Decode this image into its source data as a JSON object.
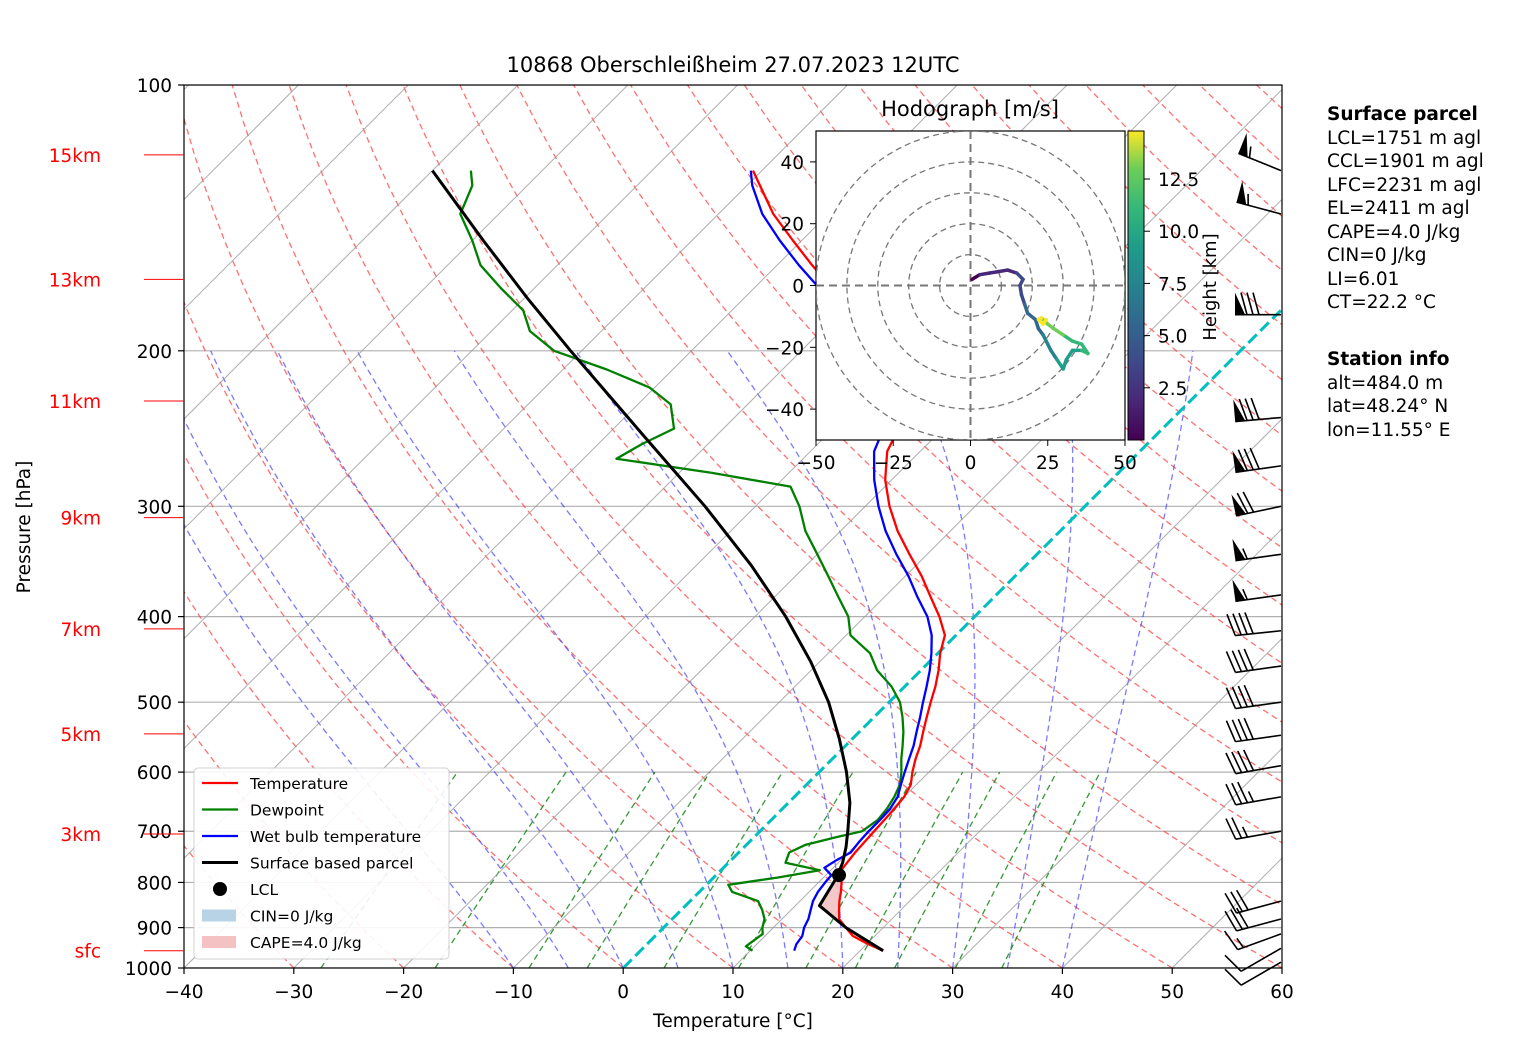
{
  "chart_data": {
    "type": "skew-t",
    "title": "10868 Oberschleißheim 27.07.2023 12UTC",
    "xlabel": "Temperature [°C]",
    "ylabel": "Pressure [hPa]",
    "xlim": [
      -40,
      60
    ],
    "ylim": [
      1000,
      100
    ],
    "x_ticks": [
      "−40",
      "−30",
      "−20",
      "−10",
      "0",
      "10",
      "20",
      "30",
      "40",
      "50",
      "60"
    ],
    "y_ticks": [
      "100",
      "200",
      "300",
      "400",
      "500",
      "600",
      "700",
      "800",
      "900",
      "1000"
    ],
    "y_tick_values": [
      100,
      200,
      300,
      400,
      500,
      600,
      700,
      800,
      900,
      1000
    ],
    "height_labels": [
      {
        "label": "sfc",
        "p": 956
      },
      {
        "label": "3km",
        "p": 705
      },
      {
        "label": "5km",
        "p": 543
      },
      {
        "label": "7km",
        "p": 413
      },
      {
        "label": "9km",
        "p": 309
      },
      {
        "label": "11km",
        "p": 228
      },
      {
        "label": "13km",
        "p": 166
      },
      {
        "label": "15km",
        "p": 120
      }
    ],
    "legend": {
      "position": "lower-left",
      "entries": [
        "Temperature",
        "Dewpoint",
        "Wet bulb temperature",
        "Surface based parcel",
        "LCL",
        "CIN=0 J/kg",
        "CAPE=4.0 J/kg"
      ]
    },
    "colors": {
      "temperature": "#ff0000",
      "dewpoint": "#008000",
      "wetbulb": "#0000ff",
      "parcel": "#000000",
      "isotherm_zero": "#00bfbf",
      "cin": "#b9d3e6",
      "cape": "#f4c2c2"
    },
    "series": [
      {
        "name": "Temperature",
        "points": [
          [
            956,
            22.1
          ],
          [
            940,
            20.2
          ],
          [
            920,
            18.0
          ],
          [
            900,
            16.6
          ],
          [
            880,
            15.2
          ],
          [
            860,
            14.4
          ],
          [
            840,
            13.6
          ],
          [
            820,
            12.9
          ],
          [
            800,
            12.1
          ],
          [
            790,
            11.4
          ],
          [
            780,
            11.0
          ],
          [
            760,
            10.8
          ],
          [
            740,
            10.6
          ],
          [
            720,
            10.5
          ],
          [
            700,
            10.4
          ],
          [
            680,
            10.3
          ],
          [
            660,
            10.2
          ],
          [
            640,
            10.0
          ],
          [
            620,
            9.5
          ],
          [
            600,
            8.5
          ],
          [
            580,
            7.6
          ],
          [
            560,
            6.8
          ],
          [
            540,
            5.8
          ],
          [
            520,
            4.8
          ],
          [
            500,
            3.8
          ],
          [
            480,
            2.8
          ],
          [
            460,
            1.6
          ],
          [
            440,
            0.2
          ],
          [
            420,
            -1.0
          ],
          [
            400,
            -3.2
          ],
          [
            380,
            -5.8
          ],
          [
            360,
            -8.5
          ],
          [
            340,
            -11.6
          ],
          [
            320,
            -14.8
          ],
          [
            300,
            -17.8
          ],
          [
            280,
            -20.6
          ],
          [
            260,
            -23.0
          ],
          [
            250,
            -23.7
          ],
          [
            240,
            -25.0
          ],
          [
            230,
            -27.5
          ],
          [
            220,
            -30.2
          ],
          [
            212,
            -31.2
          ],
          [
            205,
            -31.5
          ],
          [
            200,
            -32.6
          ],
          [
            190,
            -35.6
          ],
          [
            180,
            -39.0
          ],
          [
            170,
            -42.8
          ],
          [
            160,
            -46.8
          ],
          [
            150,
            -50.8
          ],
          [
            140,
            -55.0
          ],
          [
            130,
            -58.8
          ],
          [
            125,
            -60.8
          ]
        ]
      },
      {
        "name": "Dewpoint",
        "points": [
          [
            956,
            10.2
          ],
          [
            945,
            9.2
          ],
          [
            930,
            9.4
          ],
          [
            915,
            9.6
          ],
          [
            900,
            9.0
          ],
          [
            880,
            8.4
          ],
          [
            860,
            7.4
          ],
          [
            840,
            6.2
          ],
          [
            820,
            3.0
          ],
          [
            805,
            2.0
          ],
          [
            790,
            5.8
          ],
          [
            775,
            9.0
          ],
          [
            760,
            5.2
          ],
          [
            740,
            4.6
          ],
          [
            725,
            5.4
          ],
          [
            710,
            7.6
          ],
          [
            700,
            9.3
          ],
          [
            680,
            9.7
          ],
          [
            660,
            9.5
          ],
          [
            640,
            9.1
          ],
          [
            620,
            8.5
          ],
          [
            600,
            7.5
          ],
          [
            580,
            6.3
          ],
          [
            560,
            5.2
          ],
          [
            540,
            4.0
          ],
          [
            520,
            2.6
          ],
          [
            500,
            1.0
          ],
          [
            480,
            -1.2
          ],
          [
            460,
            -4.0
          ],
          [
            440,
            -6.2
          ],
          [
            420,
            -9.6
          ],
          [
            400,
            -11.5
          ],
          [
            380,
            -14.2
          ],
          [
            360,
            -17.0
          ],
          [
            340,
            -20.0
          ],
          [
            320,
            -23.2
          ],
          [
            300,
            -26.0
          ],
          [
            285,
            -28.6
          ],
          [
            275,
            -37.0
          ],
          [
            265,
            -47.0
          ],
          [
            255,
            -46.0
          ],
          [
            245,
            -44.5
          ],
          [
            230,
            -47.0
          ],
          [
            220,
            -50.5
          ],
          [
            210,
            -56.0
          ],
          [
            200,
            -62.5
          ],
          [
            190,
            -66.5
          ],
          [
            180,
            -69.0
          ],
          [
            170,
            -73.0
          ],
          [
            160,
            -77.0
          ],
          [
            150,
            -80.0
          ],
          [
            140,
            -83.5
          ],
          [
            130,
            -85.0
          ],
          [
            125,
            -86.5
          ]
        ]
      },
      {
        "name": "Wet bulb temperature",
        "points": [
          [
            956,
            14.0
          ],
          [
            940,
            13.6
          ],
          [
            920,
            13.4
          ],
          [
            900,
            12.8
          ],
          [
            880,
            12.4
          ],
          [
            860,
            11.8
          ],
          [
            840,
            11.2
          ],
          [
            820,
            10.8
          ],
          [
            800,
            10.6
          ],
          [
            785,
            10.5
          ],
          [
            770,
            9.2
          ],
          [
            755,
            9.6
          ],
          [
            740,
            10.2
          ],
          [
            720,
            10.0
          ],
          [
            700,
            9.9
          ],
          [
            680,
            9.9
          ],
          [
            660,
            9.8
          ],
          [
            640,
            9.4
          ],
          [
            620,
            8.6
          ],
          [
            600,
            7.8
          ],
          [
            580,
            7.0
          ],
          [
            560,
            6.2
          ],
          [
            540,
            5.2
          ],
          [
            520,
            4.2
          ],
          [
            500,
            3.1
          ],
          [
            480,
            2.0
          ],
          [
            460,
            0.8
          ],
          [
            440,
            -0.6
          ],
          [
            420,
            -2.2
          ],
          [
            400,
            -4.3
          ],
          [
            380,
            -7.0
          ],
          [
            360,
            -9.7
          ],
          [
            340,
            -12.8
          ],
          [
            320,
            -15.9
          ],
          [
            300,
            -18.8
          ],
          [
            280,
            -21.6
          ],
          [
            260,
            -24.2
          ],
          [
            250,
            -25.0
          ],
          [
            240,
            -26.6
          ],
          [
            230,
            -29.0
          ],
          [
            220,
            -31.6
          ],
          [
            210,
            -33.4
          ],
          [
            200,
            -34.6
          ],
          [
            190,
            -37.0
          ],
          [
            180,
            -40.5
          ],
          [
            170,
            -44.0
          ],
          [
            160,
            -48.0
          ],
          [
            150,
            -52.0
          ],
          [
            140,
            -56.0
          ],
          [
            130,
            -59.5
          ],
          [
            125,
            -61.0
          ]
        ]
      },
      {
        "name": "Surface based parcel",
        "points": [
          [
            956,
            22.1
          ],
          [
            900,
            16.6
          ],
          [
            850,
            12.2
          ],
          [
            790,
            11.2
          ],
          [
            760,
            10.4
          ],
          [
            730,
            9.3
          ],
          [
            700,
            8.0
          ],
          [
            650,
            5.6
          ],
          [
            600,
            2.5
          ],
          [
            550,
            -1.2
          ],
          [
            500,
            -5.5
          ],
          [
            450,
            -10.8
          ],
          [
            400,
            -17.2
          ],
          [
            350,
            -25.0
          ],
          [
            300,
            -34.6
          ],
          [
            250,
            -46.5
          ],
          [
            200,
            -61.0
          ],
          [
            175,
            -69.5
          ],
          [
            150,
            -79.0
          ],
          [
            125,
            -90.0
          ]
        ]
      }
    ],
    "lcl": {
      "label": "LCL",
      "p": 785,
      "t": 11.2
    },
    "wind_barbs": [
      {
        "p": 985,
        "speed_kt": 10,
        "dir_deg": 240
      },
      {
        "p": 950,
        "speed_kt": 10,
        "dir_deg": 240
      },
      {
        "p": 915,
        "speed_kt": 15,
        "dir_deg": 250
      },
      {
        "p": 880,
        "speed_kt": 30,
        "dir_deg": 255
      },
      {
        "p": 840,
        "speed_kt": 30,
        "dir_deg": 255
      },
      {
        "p": 700,
        "speed_kt": 25,
        "dir_deg": 260
      },
      {
        "p": 640,
        "speed_kt": 35,
        "dir_deg": 260
      },
      {
        "p": 590,
        "speed_kt": 40,
        "dir_deg": 260
      },
      {
        "p": 545,
        "speed_kt": 40,
        "dir_deg": 262
      },
      {
        "p": 500,
        "speed_kt": 40,
        "dir_deg": 262
      },
      {
        "p": 455,
        "speed_kt": 40,
        "dir_deg": 262
      },
      {
        "p": 415,
        "speed_kt": 40,
        "dir_deg": 264
      },
      {
        "p": 378,
        "speed_kt": 55,
        "dir_deg": 262
      },
      {
        "p": 340,
        "speed_kt": 55,
        "dir_deg": 262
      },
      {
        "p": 300,
        "speed_kt": 70,
        "dir_deg": 258
      },
      {
        "p": 270,
        "speed_kt": 80,
        "dir_deg": 262
      },
      {
        "p": 238,
        "speed_kt": 80,
        "dir_deg": 265
      },
      {
        "p": 182,
        "speed_kt": 80,
        "dir_deg": 270
      },
      {
        "p": 140,
        "speed_kt": 55,
        "dir_deg": 285
      },
      {
        "p": 125,
        "speed_kt": 55,
        "dir_deg": 292
      }
    ],
    "hodograph": {
      "title": "Hodograph [m/s]",
      "xlim": [
        -50,
        50
      ],
      "ylim": [
        -50,
        50
      ],
      "x_ticks": [
        "−50",
        "−25",
        "0",
        "25",
        "50"
      ],
      "y_ticks": [
        "40",
        "20",
        "0",
        "−20",
        "−40"
      ],
      "colorbar_label": "Height [km]",
      "colorbar_ticks": [
        "2.5",
        "5.0",
        "7.5",
        "10.0",
        "12.5"
      ],
      "colormap": "viridis",
      "points": [
        {
          "u": 0.5,
          "v": 2.0,
          "h": 0.5
        },
        {
          "u": 3.0,
          "v": 3.5,
          "h": 1.0
        },
        {
          "u": 6.0,
          "v": 4.0,
          "h": 1.5
        },
        {
          "u": 9.0,
          "v": 4.5,
          "h": 2.0
        },
        {
          "u": 12.0,
          "v": 5.0,
          "h": 2.5
        },
        {
          "u": 15.0,
          "v": 4.0,
          "h": 3.0
        },
        {
          "u": 17.0,
          "v": 2.0,
          "h": 3.5
        },
        {
          "u": 16.0,
          "v": 0.0,
          "h": 4.0
        },
        {
          "u": 16.5,
          "v": -3.0,
          "h": 4.5
        },
        {
          "u": 17.5,
          "v": -6.0,
          "h": 5.0
        },
        {
          "u": 18.5,
          "v": -9.0,
          "h": 5.5
        },
        {
          "u": 21.0,
          "v": -11.0,
          "h": 6.0
        },
        {
          "u": 22.0,
          "v": -14.0,
          "h": 6.5
        },
        {
          "u": 23.5,
          "v": -16.0,
          "h": 7.0
        },
        {
          "u": 25.0,
          "v": -19.0,
          "h": 7.5
        },
        {
          "u": 26.0,
          "v": -21.0,
          "h": 8.0
        },
        {
          "u": 28.0,
          "v": -24.0,
          "h": 8.5
        },
        {
          "u": 30.0,
          "v": -27.0,
          "h": 9.0
        },
        {
          "u": 31.0,
          "v": -24.0,
          "h": 9.5
        },
        {
          "u": 33.0,
          "v": -21.0,
          "h": 10.0
        },
        {
          "u": 36.0,
          "v": -21.0,
          "h": 10.5
        },
        {
          "u": 38.0,
          "v": -22.0,
          "h": 11.0
        },
        {
          "u": 36.0,
          "v": -19.0,
          "h": 11.5
        },
        {
          "u": 33.0,
          "v": -18.0,
          "h": 12.0
        },
        {
          "u": 30.0,
          "v": -16.0,
          "h": 12.5
        },
        {
          "u": 27.0,
          "v": -14.0,
          "h": 13.0
        },
        {
          "u": 25.0,
          "v": -12.5,
          "h": 13.5
        },
        {
          "u": 24.0,
          "v": -11.5,
          "h": 14.0
        },
        {
          "u": 23.0,
          "v": -10.5,
          "h": 14.5
        },
        {
          "u": 22.0,
          "v": -11.0,
          "h": 14.8
        },
        {
          "u": 23.5,
          "v": -12.5,
          "h": 15.0
        },
        {
          "u": 24.5,
          "v": -11.0,
          "h": 15.2
        }
      ]
    }
  },
  "surface_parcel": {
    "heading": "Surface parcel",
    "lines": [
      "LCL=1751 m agl",
      "CCL=1901 m agl",
      "LFC=2231 m agl",
      "EL=2411 m agl",
      "CAPE=4.0 J/kg",
      "CIN=0 J/kg",
      "LI=6.01",
      "CT=22.2 °C"
    ]
  },
  "station_info": {
    "heading": "Station info",
    "lines": [
      "alt=484.0 m",
      "lat=48.24° N",
      "lon=11.55° E"
    ]
  }
}
